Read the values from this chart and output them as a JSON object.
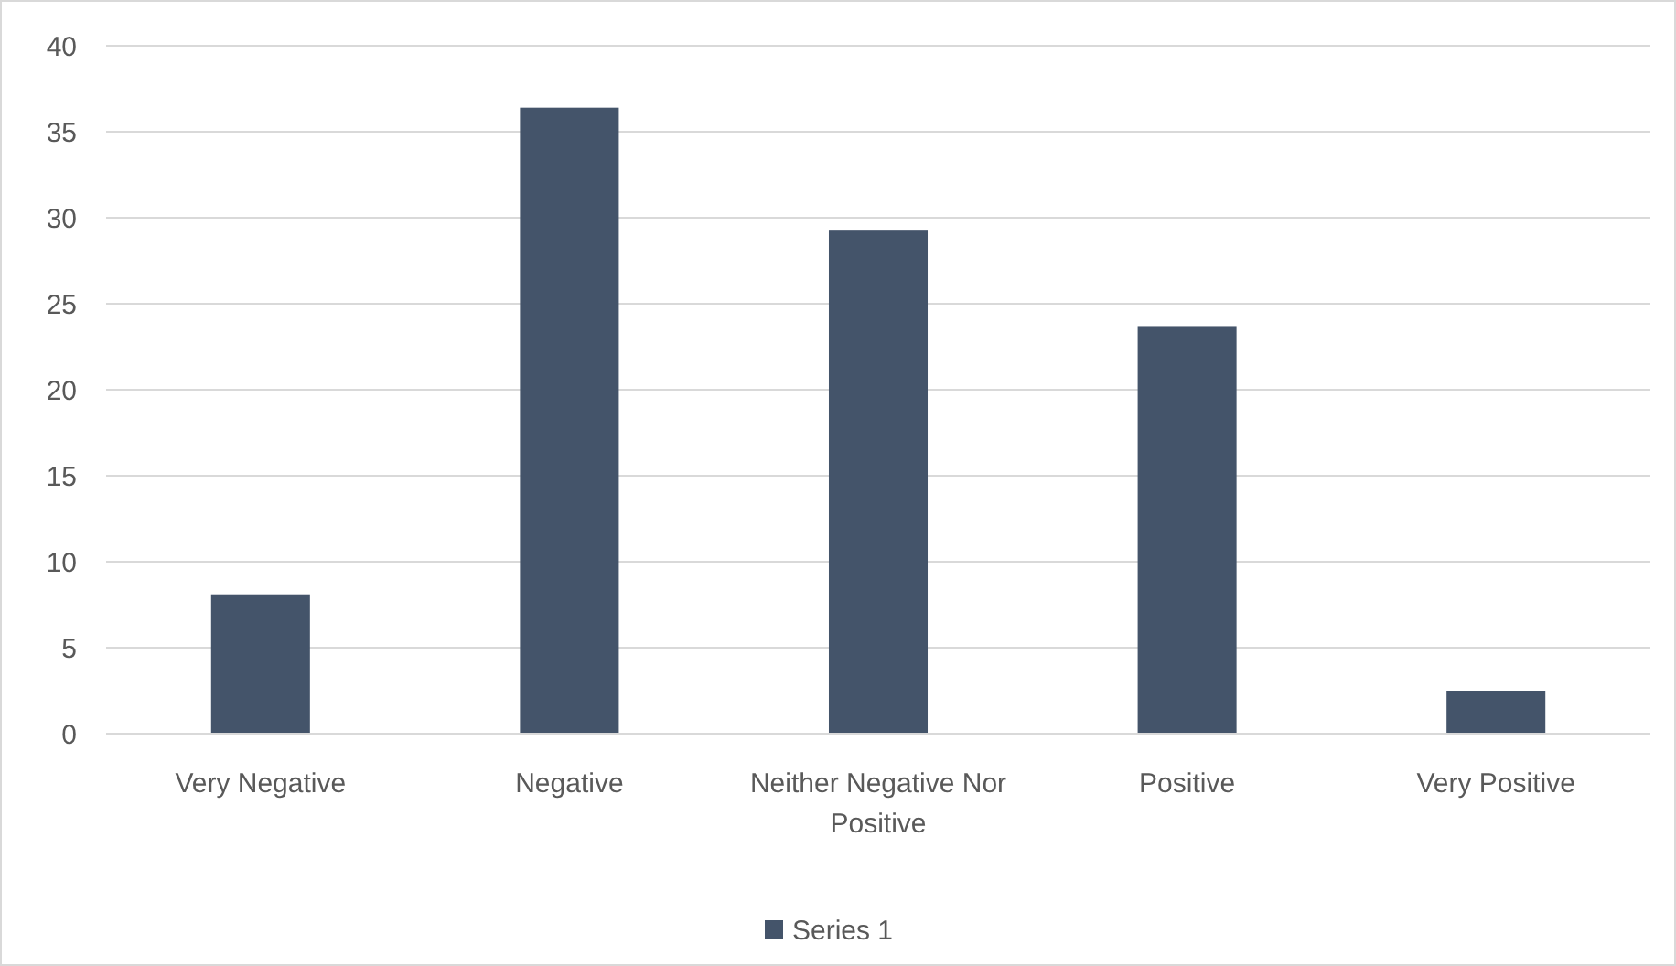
{
  "chart_data": {
    "type": "bar",
    "categories": [
      "Very Negative",
      "Negative",
      "Neither Negative Nor Positive",
      "Positive",
      "Very Positive"
    ],
    "series": [
      {
        "name": "Series 1",
        "color": "#44546a",
        "values": [
          8.1,
          36.4,
          29.3,
          23.7,
          2.5
        ]
      }
    ],
    "ylim": [
      0,
      40
    ],
    "yticks": [
      0,
      5,
      10,
      15,
      20,
      25,
      30,
      35,
      40
    ],
    "grid": "y",
    "legend": "bottom"
  }
}
